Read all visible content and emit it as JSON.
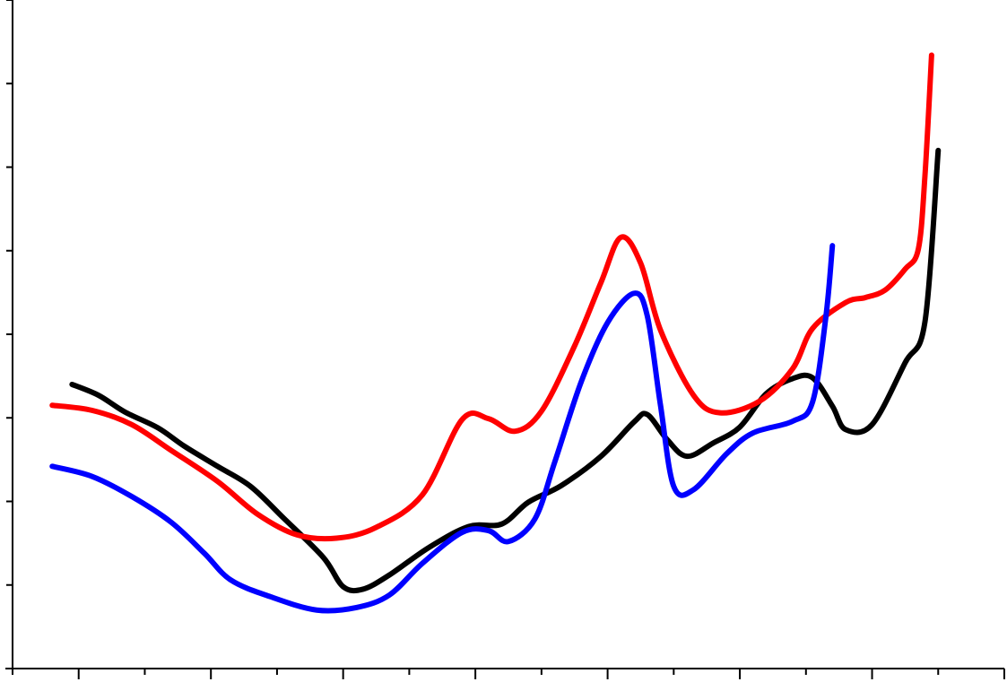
{
  "chart_data": {
    "type": "line",
    "title": "",
    "xlabel": "",
    "ylabel": "",
    "xlim": [
      0,
      15
    ],
    "ylim": [
      0,
      8
    ],
    "grid": false,
    "legend": "none",
    "x_tick_count": 15,
    "y_tick_count": 8,
    "series": [
      {
        "color": "#000000",
        "points": [
          [
            0.9,
            3.4
          ],
          [
            1.3,
            3.27
          ],
          [
            1.7,
            3.07
          ],
          [
            2.2,
            2.88
          ],
          [
            2.6,
            2.66
          ],
          [
            3.1,
            2.42
          ],
          [
            3.6,
            2.18
          ],
          [
            4.1,
            1.8
          ],
          [
            4.7,
            1.33
          ],
          [
            5.0,
            0.98
          ],
          [
            5.3,
            0.95
          ],
          [
            5.7,
            1.12
          ],
          [
            6.3,
            1.45
          ],
          [
            6.9,
            1.7
          ],
          [
            7.4,
            1.73
          ],
          [
            7.8,
            1.99
          ],
          [
            8.3,
            2.19
          ],
          [
            8.9,
            2.54
          ],
          [
            9.4,
            2.95
          ],
          [
            9.6,
            3.04
          ],
          [
            9.9,
            2.74
          ],
          [
            10.2,
            2.54
          ],
          [
            10.6,
            2.7
          ],
          [
            11.0,
            2.89
          ],
          [
            11.4,
            3.29
          ],
          [
            11.8,
            3.47
          ],
          [
            12.1,
            3.48
          ],
          [
            12.4,
            3.14
          ],
          [
            12.6,
            2.86
          ],
          [
            13.0,
            2.92
          ],
          [
            13.5,
            3.66
          ],
          [
            13.8,
            4.15
          ],
          [
            14.0,
            6.2
          ]
        ]
      },
      {
        "color": "#ff0000",
        "points": [
          [
            0.6,
            3.15
          ],
          [
            1.2,
            3.09
          ],
          [
            1.8,
            2.92
          ],
          [
            2.4,
            2.61
          ],
          [
            3.1,
            2.24
          ],
          [
            3.7,
            1.85
          ],
          [
            4.3,
            1.6
          ],
          [
            4.9,
            1.56
          ],
          [
            5.5,
            1.69
          ],
          [
            6.2,
            2.08
          ],
          [
            6.8,
            2.98
          ],
          [
            7.2,
            2.99
          ],
          [
            7.6,
            2.84
          ],
          [
            8.0,
            3.08
          ],
          [
            8.5,
            3.86
          ],
          [
            8.9,
            4.62
          ],
          [
            9.2,
            5.16
          ],
          [
            9.5,
            4.85
          ],
          [
            9.8,
            4.05
          ],
          [
            10.3,
            3.27
          ],
          [
            10.7,
            3.06
          ],
          [
            11.3,
            3.2
          ],
          [
            11.8,
            3.59
          ],
          [
            12.1,
            4.07
          ],
          [
            12.6,
            4.38
          ],
          [
            12.9,
            4.44
          ],
          [
            13.2,
            4.53
          ],
          [
            13.5,
            4.78
          ],
          [
            13.7,
            5.02
          ],
          [
            13.8,
            5.9
          ],
          [
            13.9,
            7.34
          ]
        ]
      },
      {
        "color": "#0000ff",
        "points": [
          [
            0.6,
            2.42
          ],
          [
            1.2,
            2.3
          ],
          [
            1.8,
            2.06
          ],
          [
            2.4,
            1.75
          ],
          [
            2.9,
            1.38
          ],
          [
            3.3,
            1.06
          ],
          [
            3.9,
            0.86
          ],
          [
            4.6,
            0.7
          ],
          [
            5.2,
            0.73
          ],
          [
            5.7,
            0.88
          ],
          [
            6.2,
            1.26
          ],
          [
            6.8,
            1.63
          ],
          [
            7.2,
            1.65
          ],
          [
            7.5,
            1.52
          ],
          [
            7.9,
            1.79
          ],
          [
            8.2,
            2.47
          ],
          [
            8.6,
            3.43
          ],
          [
            9.0,
            4.14
          ],
          [
            9.4,
            4.49
          ],
          [
            9.6,
            4.22
          ],
          [
            9.8,
            3.15
          ],
          [
            10.0,
            2.18
          ],
          [
            10.3,
            2.14
          ],
          [
            10.8,
            2.57
          ],
          [
            11.2,
            2.82
          ],
          [
            11.8,
            2.96
          ],
          [
            12.1,
            3.19
          ],
          [
            12.3,
            4.2
          ],
          [
            12.4,
            5.06
          ]
        ]
      }
    ]
  }
}
